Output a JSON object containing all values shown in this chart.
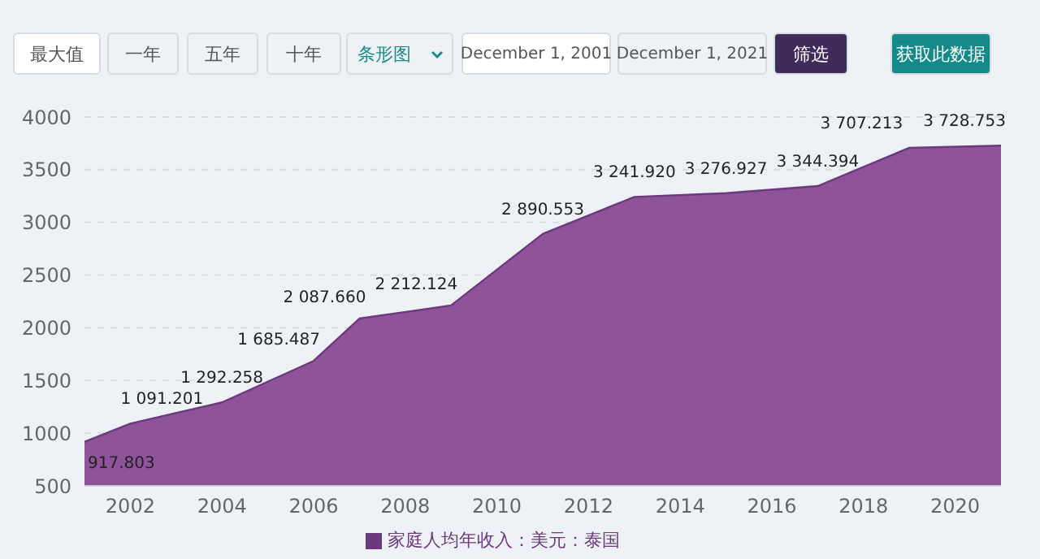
{
  "chart_data": {
    "type": "area",
    "annotations": [
      "最大值",
      "一年",
      "五年",
      "十年",
      "条形图",
      "December 1, 2001",
      "December 1, 2021",
      "筛选",
      "获取此数据"
    ],
    "x": [
      2001,
      2002,
      2004,
      2006,
      2007,
      2009,
      2011,
      2013,
      2015,
      2017,
      2019,
      2021
    ],
    "series": [
      {
        "name": "家庭人均年收入：美元：泰国",
        "color": "#8e5399",
        "values": [
          917.803,
          1091.201,
          1292.258,
          1685.487,
          2087.66,
          2212.124,
          2890.553,
          3241.92,
          3276.927,
          3344.394,
          3707.213,
          3728.753
        ],
        "value_labels": [
          "917.803",
          "1 091.201",
          "1 292.258",
          "1 685.487",
          "2 087.660",
          "2 212.124",
          "2 890.553",
          "3 241.920",
          "3 276.927",
          "3 344.394",
          "3 707.213",
          "3 728.753"
        ]
      }
    ],
    "xlim": [
      2001,
      2021
    ],
    "xticks": [
      2002,
      2004,
      2006,
      2008,
      2010,
      2012,
      2014,
      2016,
      2018,
      2020
    ],
    "ylim": [
      500,
      4000
    ],
    "yticks": [
      500,
      1000,
      1500,
      2000,
      2500,
      3000,
      3500,
      4000
    ],
    "grid": "y",
    "legend": "bottom"
  }
}
